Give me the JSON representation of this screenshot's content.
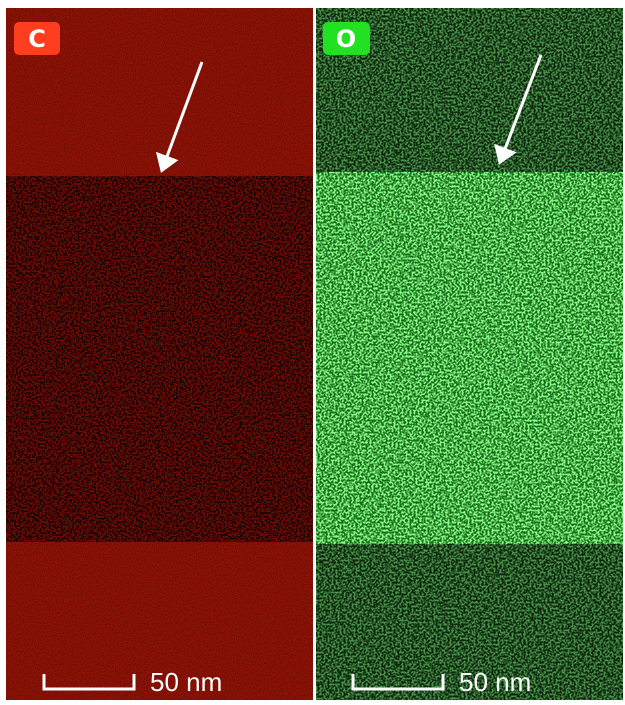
{
  "panels": [
    {
      "label": "C",
      "scale_bar": "50 nm"
    },
    {
      "label": "O",
      "scale_bar": "50 nm"
    }
  ]
}
